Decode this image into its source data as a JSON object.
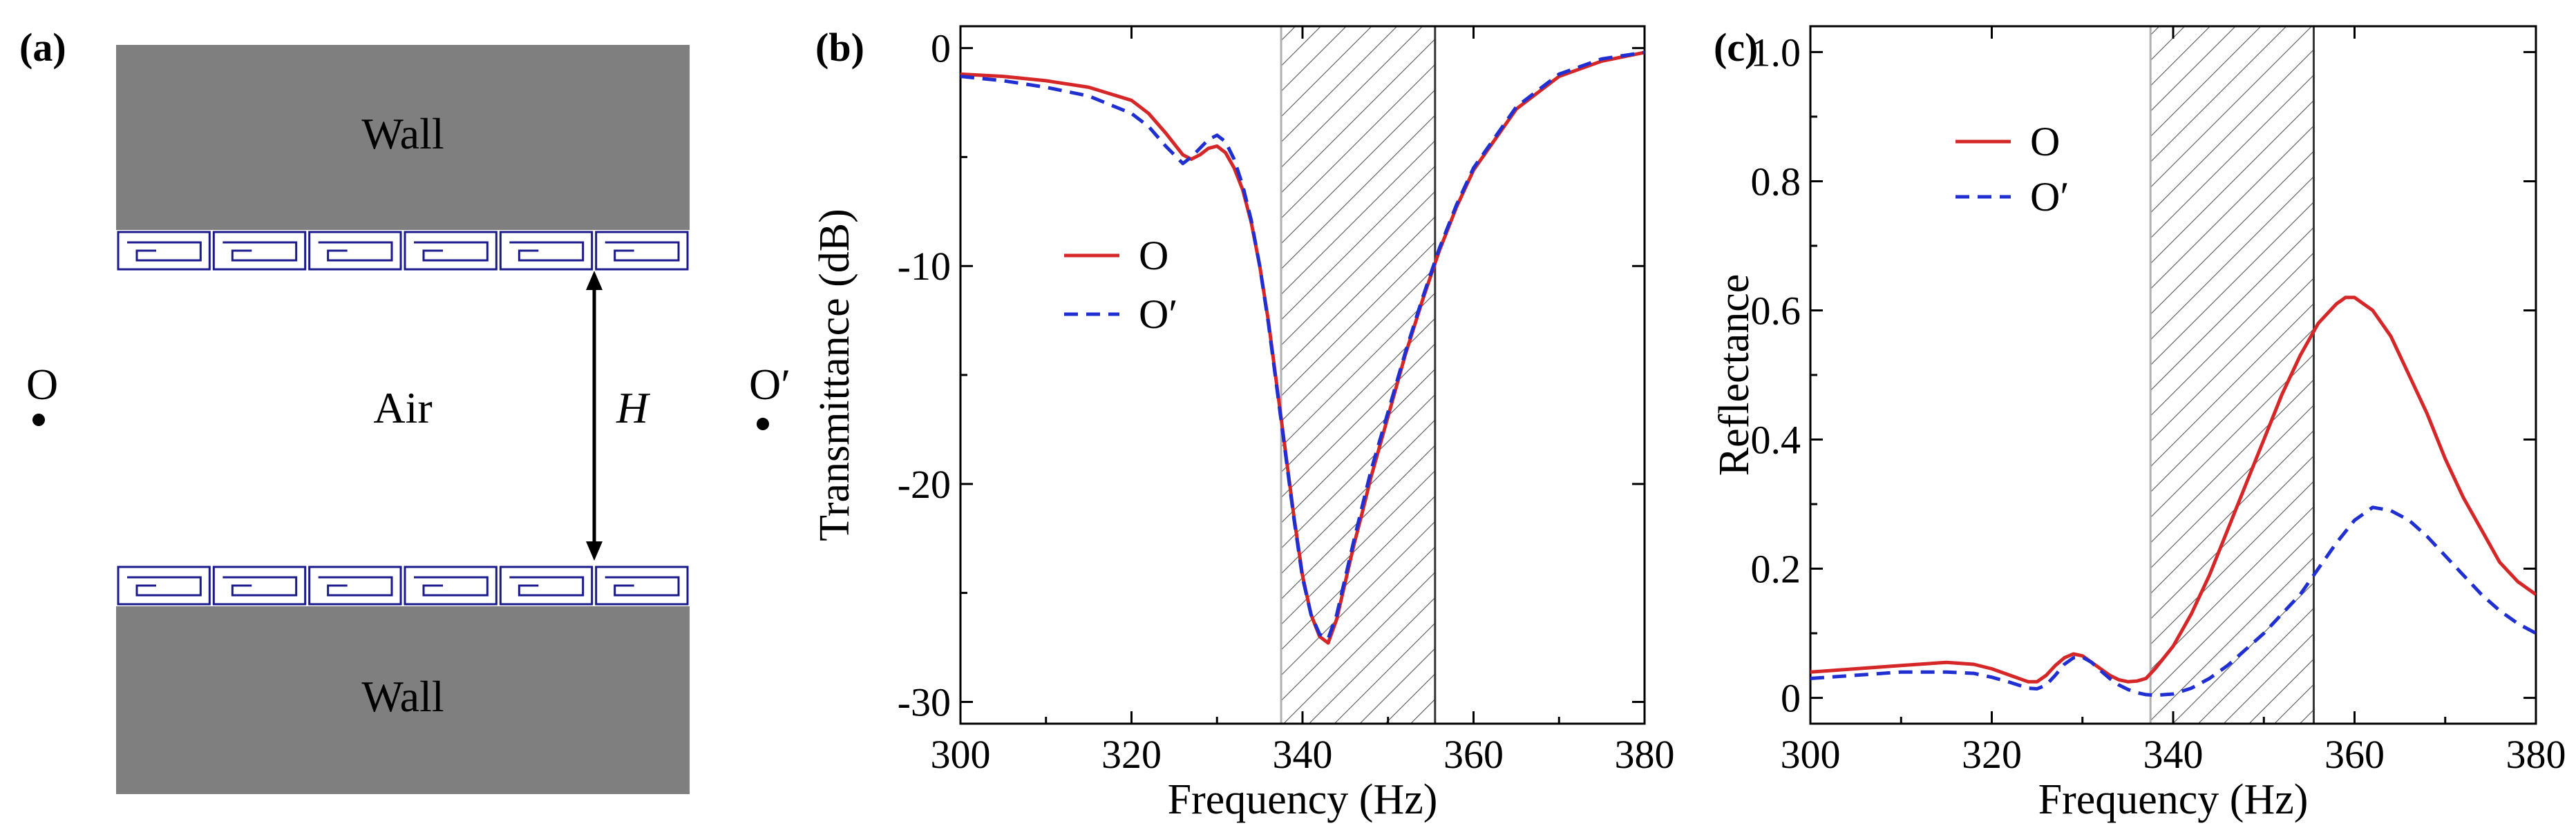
{
  "panel_a": {
    "label": "(a)",
    "wall_top_label": "Wall",
    "wall_bottom_label": "Wall",
    "air_label": "Air",
    "gap_label": "H",
    "point_left_label": "O",
    "point_right_label": "O′",
    "unit_cells_per_row": 6
  },
  "colors": {
    "wall": "#7f7f7f",
    "cell_border": "#1a1a8c",
    "series_O": "#d62728",
    "series_Oprime": "#1f2fd1",
    "hatch": "#555555",
    "band_edge_left": "#b0b0b0",
    "band_edge_right": "#333333"
  },
  "chart_data": [
    {
      "panel_label": "(b)",
      "type": "line",
      "xlabel": "Frequency (Hz)",
      "ylabel": "Transmittance (dB)",
      "xlim": [
        300,
        380
      ],
      "ylim": [
        -31,
        1
      ],
      "xticks": [
        300,
        320,
        340,
        360,
        380
      ],
      "xtick_labels": [
        "300",
        "320",
        "340",
        "360",
        "380"
      ],
      "yticks": [
        0,
        -10,
        -20,
        -30
      ],
      "ytick_labels": [
        "0",
        "-10",
        "-20",
        "-30"
      ],
      "shaded_band": [
        337.5,
        355.5
      ],
      "legend_position": "middle-left",
      "series": [
        {
          "name": "O",
          "style": "solid",
          "x": [
            300,
            305,
            310,
            315,
            320,
            322,
            324,
            326,
            327,
            328,
            329,
            330,
            331,
            332,
            333,
            334,
            335,
            336,
            337,
            338,
            339,
            340,
            341,
            342,
            343,
            344,
            345,
            346,
            347,
            348,
            350,
            352,
            354,
            356,
            358,
            360,
            365,
            370,
            375,
            380
          ],
          "y": [
            -1.2,
            -1.3,
            -1.5,
            -1.8,
            -2.4,
            -3.0,
            -3.9,
            -4.9,
            -5.1,
            -4.9,
            -4.6,
            -4.5,
            -4.8,
            -5.5,
            -6.5,
            -8.0,
            -10.0,
            -12.5,
            -15.5,
            -18.5,
            -21.5,
            -24.2,
            -26.0,
            -27.0,
            -27.3,
            -26.2,
            -24.5,
            -22.8,
            -21.3,
            -19.7,
            -16.9,
            -14.1,
            -11.6,
            -9.3,
            -7.3,
            -5.6,
            -2.8,
            -1.3,
            -0.6,
            -0.2
          ]
        },
        {
          "name": "O′",
          "style": "dashed",
          "x": [
            300,
            305,
            310,
            315,
            320,
            322,
            324,
            326,
            327,
            328,
            329,
            330,
            331,
            332,
            333,
            334,
            335,
            336,
            337,
            338,
            339,
            340,
            341,
            342,
            343,
            344,
            345,
            346,
            347,
            348,
            350,
            352,
            354,
            356,
            358,
            360,
            365,
            370,
            375,
            380
          ],
          "y": [
            -1.3,
            -1.5,
            -1.8,
            -2.2,
            -3.0,
            -3.6,
            -4.5,
            -5.3,
            -5.0,
            -4.6,
            -4.2,
            -4.0,
            -4.3,
            -5.1,
            -6.3,
            -7.9,
            -10.0,
            -12.6,
            -15.6,
            -18.6,
            -21.6,
            -24.3,
            -26.0,
            -26.9,
            -27.1,
            -26.0,
            -24.3,
            -22.6,
            -21.0,
            -19.4,
            -16.7,
            -14.0,
            -11.5,
            -9.2,
            -7.2,
            -5.5,
            -2.7,
            -1.2,
            -0.5,
            -0.2
          ]
        }
      ]
    },
    {
      "panel_label": "(c)",
      "type": "line",
      "xlabel": "Frequency (Hz)",
      "ylabel": "Reflectance",
      "xlim": [
        300,
        380
      ],
      "ylim": [
        -0.04,
        1.04
      ],
      "xticks": [
        300,
        320,
        340,
        360,
        380
      ],
      "xtick_labels": [
        "300",
        "320",
        "340",
        "360",
        "380"
      ],
      "yticks": [
        0,
        0.2,
        0.4,
        0.6,
        0.8,
        1.0
      ],
      "ytick_labels": [
        "0",
        "0.2",
        "0.4",
        "0.6",
        "0.8",
        "1.0"
      ],
      "shaded_band": [
        337.5,
        355.5
      ],
      "legend_position": "top-left",
      "series": [
        {
          "name": "O",
          "style": "solid",
          "x": [
            300,
            305,
            310,
            315,
            318,
            320,
            322,
            324,
            325,
            326,
            327,
            328,
            329,
            330,
            331,
            332,
            333,
            334,
            335,
            336,
            337,
            338,
            340,
            342,
            344,
            346,
            348,
            350,
            352,
            354,
            356,
            358,
            359,
            360,
            362,
            364,
            366,
            368,
            370,
            372,
            374,
            376,
            378,
            380
          ],
          "y": [
            0.04,
            0.045,
            0.05,
            0.055,
            0.052,
            0.045,
            0.035,
            0.025,
            0.025,
            0.035,
            0.05,
            0.062,
            0.068,
            0.065,
            0.055,
            0.045,
            0.035,
            0.028,
            0.025,
            0.026,
            0.03,
            0.045,
            0.08,
            0.13,
            0.19,
            0.26,
            0.33,
            0.4,
            0.47,
            0.53,
            0.58,
            0.61,
            0.62,
            0.62,
            0.6,
            0.56,
            0.5,
            0.44,
            0.37,
            0.31,
            0.26,
            0.21,
            0.18,
            0.16
          ]
        },
        {
          "name": "O′",
          "style": "dashed",
          "x": [
            300,
            305,
            310,
            315,
            318,
            320,
            322,
            324,
            325,
            326,
            327,
            328,
            329,
            330,
            331,
            332,
            333,
            334,
            335,
            336,
            337,
            338,
            340,
            342,
            344,
            346,
            348,
            350,
            352,
            354,
            356,
            358,
            360,
            362,
            364,
            366,
            368,
            370,
            372,
            374,
            376,
            378,
            380
          ],
          "y": [
            0.03,
            0.035,
            0.04,
            0.04,
            0.038,
            0.032,
            0.024,
            0.015,
            0.014,
            0.02,
            0.035,
            0.052,
            0.062,
            0.063,
            0.055,
            0.042,
            0.03,
            0.02,
            0.013,
            0.008,
            0.005,
            0.004,
            0.006,
            0.015,
            0.03,
            0.05,
            0.075,
            0.1,
            0.13,
            0.16,
            0.2,
            0.24,
            0.275,
            0.295,
            0.29,
            0.275,
            0.25,
            0.22,
            0.19,
            0.16,
            0.135,
            0.115,
            0.1
          ]
        }
      ]
    }
  ]
}
